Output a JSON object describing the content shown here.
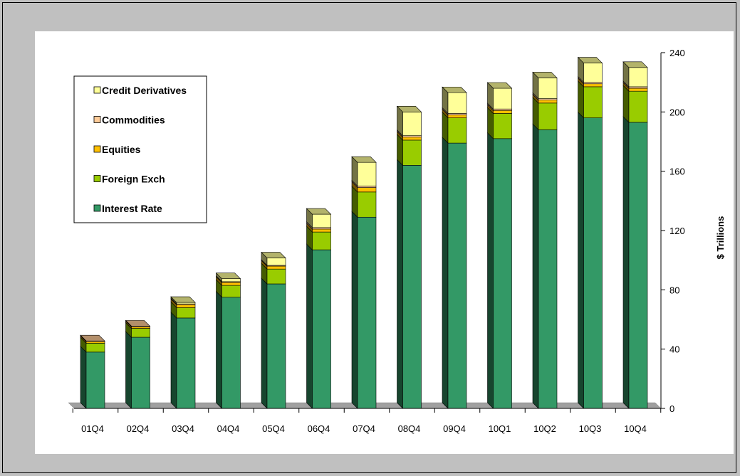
{
  "chart_data": {
    "type": "bar",
    "stacked": true,
    "style": "3d",
    "categories": [
      "01Q4",
      "02Q4",
      "03Q4",
      "04Q4",
      "05Q4",
      "06Q4",
      "07Q4",
      "08Q4",
      "09Q4",
      "10Q1",
      "10Q2",
      "10Q3",
      "10Q4"
    ],
    "series": [
      {
        "name": "Interest Rate",
        "color": "#339966",
        "values": [
          38,
          48,
          61,
          75,
          84,
          107,
          129,
          164,
          179,
          182,
          188,
          196,
          193
        ]
      },
      {
        "name": "Foreign Exch",
        "color": "#99cc00",
        "values": [
          6,
          6,
          7,
          8,
          10,
          12,
          17,
          17,
          17,
          17,
          18,
          21,
          21
        ]
      },
      {
        "name": "Equities",
        "color": "#ffc000",
        "values": [
          1,
          1,
          2,
          2,
          2,
          2,
          3,
          2,
          2,
          2,
          2,
          2,
          2
        ]
      },
      {
        "name": "Commodities",
        "color": "#ffcc99",
        "values": [
          0.5,
          0.5,
          0.5,
          0.5,
          0.5,
          1,
          1,
          1,
          1,
          1,
          1,
          1,
          1
        ]
      },
      {
        "name": "Credit Derivatives",
        "color": "#ffff99",
        "values": [
          0,
          0,
          1,
          2,
          5,
          9,
          16,
          16,
          14,
          14,
          14,
          13,
          13
        ]
      }
    ],
    "legend_order": [
      "Credit Derivatives",
      "Commodities",
      "Equities",
      "Foreign Exch",
      "Interest Rate"
    ],
    "legend_position": "top-left",
    "ylabel": "$ Trillions",
    "y_axis_side": "right",
    "ylim": [
      0,
      240
    ],
    "yticks": [
      0,
      40,
      80,
      120,
      160,
      200,
      240
    ],
    "grid": false
  }
}
